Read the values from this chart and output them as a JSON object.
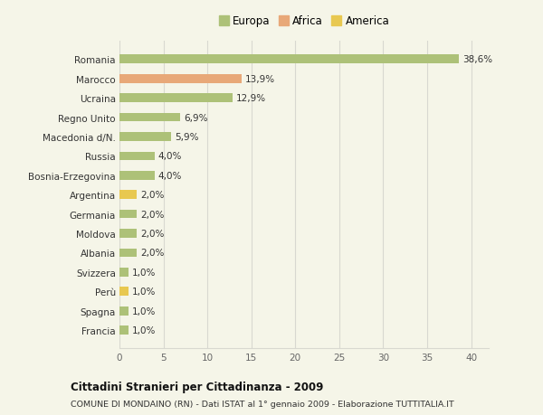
{
  "categories": [
    "Francia",
    "Spagna",
    "Perù",
    "Svizzera",
    "Albania",
    "Moldova",
    "Germania",
    "Argentina",
    "Bosnia-Erzegovina",
    "Russia",
    "Macedonia d/N.",
    "Regno Unito",
    "Ucraina",
    "Marocco",
    "Romania"
  ],
  "values": [
    1.0,
    1.0,
    1.0,
    1.0,
    2.0,
    2.0,
    2.0,
    2.0,
    4.0,
    4.0,
    5.9,
    6.9,
    12.9,
    13.9,
    38.6
  ],
  "labels": [
    "1,0%",
    "1,0%",
    "1,0%",
    "1,0%",
    "2,0%",
    "2,0%",
    "2,0%",
    "2,0%",
    "4,0%",
    "4,0%",
    "5,9%",
    "6,9%",
    "12,9%",
    "13,9%",
    "38,6%"
  ],
  "continents": [
    "Europa",
    "Europa",
    "America",
    "Europa",
    "Europa",
    "Europa",
    "Europa",
    "America",
    "Europa",
    "Europa",
    "Europa",
    "Europa",
    "Europa",
    "Africa",
    "Europa"
  ],
  "colors": {
    "Europa": "#adc178",
    "Africa": "#e8a878",
    "America": "#e8c850"
  },
  "legend_items": [
    "Europa",
    "Africa",
    "America"
  ],
  "legend_colors": [
    "#adc178",
    "#e8a878",
    "#e8c850"
  ],
  "title": "Cittadini Stranieri per Cittadinanza - 2009",
  "subtitle": "COMUNE DI MONDAINO (RN) - Dati ISTAT al 1° gennaio 2009 - Elaborazione TUTTITALIA.IT",
  "xlim": [
    0,
    42
  ],
  "xticks": [
    0,
    5,
    10,
    15,
    20,
    25,
    30,
    35,
    40
  ],
  "background_color": "#f5f5e8",
  "grid_color": "#d8d8d0",
  "bar_height": 0.45,
  "label_fontsize": 7.5,
  "tick_fontsize": 7.5,
  "legend_fontsize": 8.5
}
